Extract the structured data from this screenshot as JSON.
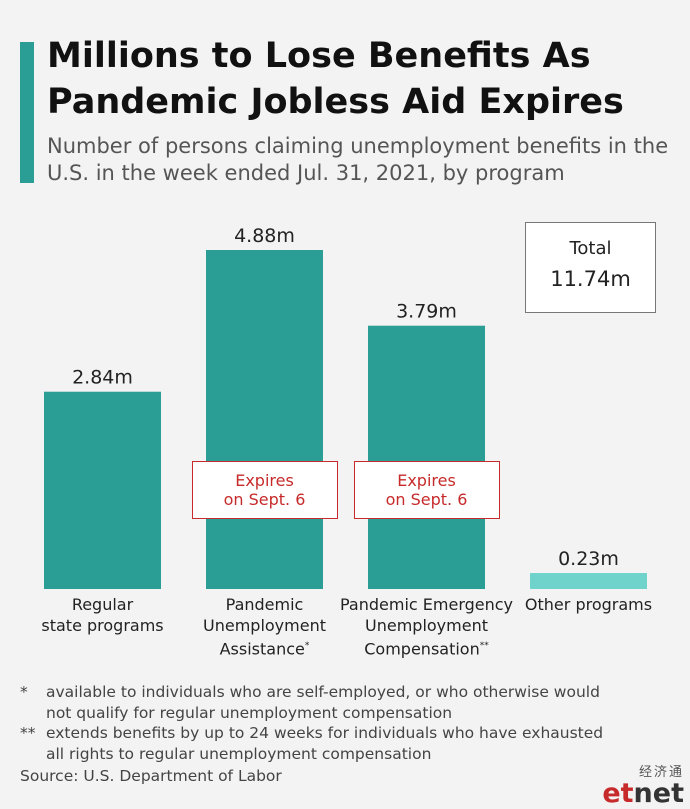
{
  "title_lines": [
    "Millions to Lose Benefits As",
    "Pandemic Jobless Aid Expires"
  ],
  "subtitle_lines": [
    "Number of persons claiming unemployment benefits in the",
    "U.S. in the week ended Jul. 31, 2021, by program"
  ],
  "colors": {
    "accent": "#2a9d94",
    "bar": "#2a9d94",
    "bar_light": "#6fd3cb",
    "expires": "#c72a2a"
  },
  "total": {
    "label": "Total",
    "value": "11.74m"
  },
  "expires_note": {
    "line1": "Expires",
    "line2": "on Sept. 6"
  },
  "chart_data": {
    "type": "bar",
    "unit": "millions",
    "categories": [
      "Regular state programs",
      "Pandemic Unemployment Assistance",
      "Pandemic Emergency Unemployment Compensation",
      "Other programs"
    ],
    "category_label_lines": [
      [
        "Regular",
        "state programs"
      ],
      [
        "Pandemic",
        "Unemployment",
        "Assistance"
      ],
      [
        "Pandemic Emergency",
        "Unemployment",
        "Compensation"
      ],
      [
        "Other programs"
      ]
    ],
    "category_marks": [
      "",
      "*",
      "**",
      ""
    ],
    "values": [
      2.84,
      4.88,
      3.79,
      0.23
    ],
    "value_labels": [
      "2.84m",
      "4.88m",
      "3.79m",
      "0.23m"
    ],
    "expires": [
      false,
      true,
      true,
      false
    ],
    "ylim": [
      0,
      4.88
    ],
    "grid": false,
    "legend": "none"
  },
  "footnotes": [
    {
      "mark": "*",
      "lines": [
        "available to individuals who are self-employed, or who otherwise would",
        "not qualify for regular unemployment compensation"
      ]
    },
    {
      "mark": "**",
      "lines": [
        "extends benefits by up to 24 weeks for individuals who have exhausted",
        "all rights to regular unemployment compensation"
      ]
    }
  ],
  "source": "Source: U.S. Department of Labor",
  "logo": {
    "cn": "经济通",
    "en_part1": "et",
    "en_part2": "net"
  }
}
